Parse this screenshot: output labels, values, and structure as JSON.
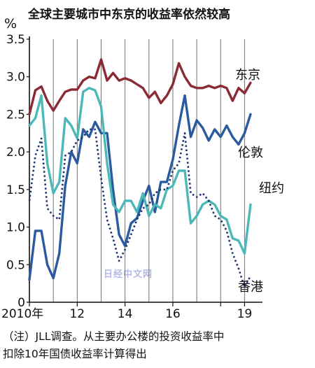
{
  "chart_data": {
    "type": "line",
    "title": "全球主要城市中东京的收益率依然较高",
    "ylabel": "%",
    "ylim": [
      0,
      3.5
    ],
    "yticks": [
      "0",
      "0.5",
      "1.0",
      "1.5",
      "2.0",
      "2.5",
      "3.0",
      "3.5"
    ],
    "xlim": [
      2010.0,
      2019.75
    ],
    "xticks": [
      {
        "x": 2010.0,
        "label": "2010年"
      },
      {
        "x": 2012.0,
        "label": "12"
      },
      {
        "x": 2014.0,
        "label": "14"
      },
      {
        "x": 2016.0,
        "label": "16"
      },
      {
        "x": 2018.0,
        "label": ""
      },
      {
        "x": 2019.0,
        "label": "19"
      }
    ],
    "grid": "vertical lines at years",
    "series": [
      {
        "name": "东京",
        "color": "#8b2a35",
        "style": "solid",
        "x": [
          2010.0,
          2010.25,
          2010.5,
          2010.75,
          2011.0,
          2011.25,
          2011.5,
          2011.75,
          2012.0,
          2012.25,
          2012.5,
          2012.75,
          2013.0,
          2013.25,
          2013.5,
          2013.75,
          2014.0,
          2014.25,
          2014.5,
          2014.75,
          2015.0,
          2015.25,
          2015.5,
          2015.75,
          2016.0,
          2016.25,
          2016.5,
          2016.75,
          2017.0,
          2017.25,
          2017.5,
          2017.75,
          2018.0,
          2018.25,
          2018.5,
          2018.75,
          2019.0,
          2019.25
        ],
        "y": [
          2.5,
          2.82,
          2.87,
          2.68,
          2.55,
          2.68,
          2.8,
          2.83,
          2.83,
          2.95,
          3.0,
          2.98,
          3.23,
          2.95,
          3.05,
          2.95,
          2.98,
          2.95,
          2.9,
          2.85,
          2.72,
          2.8,
          2.65,
          2.75,
          2.9,
          3.18,
          3.0,
          2.88,
          2.85,
          2.85,
          2.88,
          2.85,
          2.88,
          2.85,
          2.68,
          2.85,
          2.78,
          2.92
        ]
      },
      {
        "name": "伦敦",
        "color": "#2b5aa0",
        "style": "solid",
        "x": [
          2010.0,
          2010.25,
          2010.5,
          2010.75,
          2011.0,
          2011.25,
          2011.5,
          2011.75,
          2012.0,
          2012.25,
          2012.5,
          2012.75,
          2013.0,
          2013.25,
          2013.5,
          2013.75,
          2014.0,
          2014.25,
          2014.5,
          2014.75,
          2015.0,
          2015.25,
          2015.5,
          2015.75,
          2016.0,
          2016.25,
          2016.5,
          2016.75,
          2017.0,
          2017.25,
          2017.5,
          2017.75,
          2018.0,
          2018.25,
          2018.5,
          2018.75,
          2019.0,
          2019.25
        ],
        "y": [
          0.3,
          0.95,
          0.95,
          0.5,
          0.32,
          0.65,
          1.55,
          2.0,
          1.85,
          2.3,
          2.2,
          2.4,
          2.25,
          2.25,
          1.5,
          0.9,
          0.75,
          1.05,
          1.12,
          1.35,
          1.55,
          1.2,
          1.6,
          1.6,
          1.9,
          2.35,
          2.75,
          2.2,
          2.42,
          2.32,
          2.15,
          2.3,
          2.2,
          2.35,
          2.2,
          2.1,
          2.25,
          2.5
        ]
      },
      {
        "name": "纽约",
        "color": "#4cb8b8",
        "style": "solid",
        "x": [
          2010.0,
          2010.25,
          2010.5,
          2010.75,
          2011.0,
          2011.25,
          2011.5,
          2011.75,
          2012.0,
          2012.25,
          2012.5,
          2012.75,
          2013.0,
          2013.25,
          2013.5,
          2013.75,
          2014.0,
          2014.25,
          2014.5,
          2014.75,
          2015.0,
          2015.25,
          2015.5,
          2015.75,
          2016.0,
          2016.25,
          2016.5,
          2016.75,
          2017.0,
          2017.25,
          2017.5,
          2017.75,
          2018.0,
          2018.25,
          2018.5,
          2018.75,
          2019.0,
          2019.25
        ],
        "y": [
          2.35,
          2.45,
          2.75,
          1.85,
          1.45,
          1.6,
          2.45,
          2.35,
          2.18,
          2.8,
          2.85,
          2.82,
          2.6,
          1.85,
          1.3,
          1.2,
          1.35,
          1.35,
          1.2,
          1.45,
          1.15,
          1.3,
          1.25,
          1.5,
          1.55,
          1.75,
          1.75,
          1.05,
          1.15,
          1.3,
          1.35,
          1.3,
          1.15,
          1.1,
          0.85,
          0.82,
          0.65,
          1.3
        ]
      },
      {
        "name": "香港",
        "color": "#1c3570",
        "style": "dotted",
        "x": [
          2010.0,
          2010.25,
          2010.5,
          2010.75,
          2011.0,
          2011.25,
          2011.5,
          2011.75,
          2012.0,
          2012.25,
          2012.5,
          2012.75,
          2013.0,
          2013.25,
          2013.5,
          2013.75,
          2014.0,
          2014.25,
          2014.5,
          2014.75,
          2015.0,
          2015.25,
          2015.5,
          2015.75,
          2016.0,
          2016.25,
          2016.5,
          2016.75,
          2017.0,
          2017.25,
          2017.5,
          2017.75,
          2018.0,
          2018.25,
          2018.5,
          2018.75,
          2019.0,
          2019.25
        ],
        "y": [
          1.35,
          1.95,
          2.18,
          1.25,
          1.15,
          1.1,
          1.95,
          2.0,
          2.15,
          2.2,
          2.3,
          2.3,
          1.65,
          1.1,
          0.85,
          0.55,
          0.7,
          0.9,
          1.1,
          1.25,
          1.3,
          1.45,
          1.5,
          1.5,
          1.75,
          1.85,
          2.25,
          1.45,
          1.4,
          1.45,
          1.35,
          1.15,
          1.1,
          0.95,
          0.65,
          0.45,
          0.2,
          0.35
        ]
      }
    ],
    "annotations": [
      {
        "text": "东京",
        "series": "东京"
      },
      {
        "text": "伦敦",
        "series": "伦敦"
      },
      {
        "text": "纽约",
        "series": "纽约"
      },
      {
        "text": "香港",
        "series": "香港"
      }
    ]
  },
  "note": {
    "line1": "（注）JLL调查。从主要办公楼的投资收益率中",
    "line2": "扣除10年国债收益率计算得出"
  },
  "watermark": "日经中文网"
}
